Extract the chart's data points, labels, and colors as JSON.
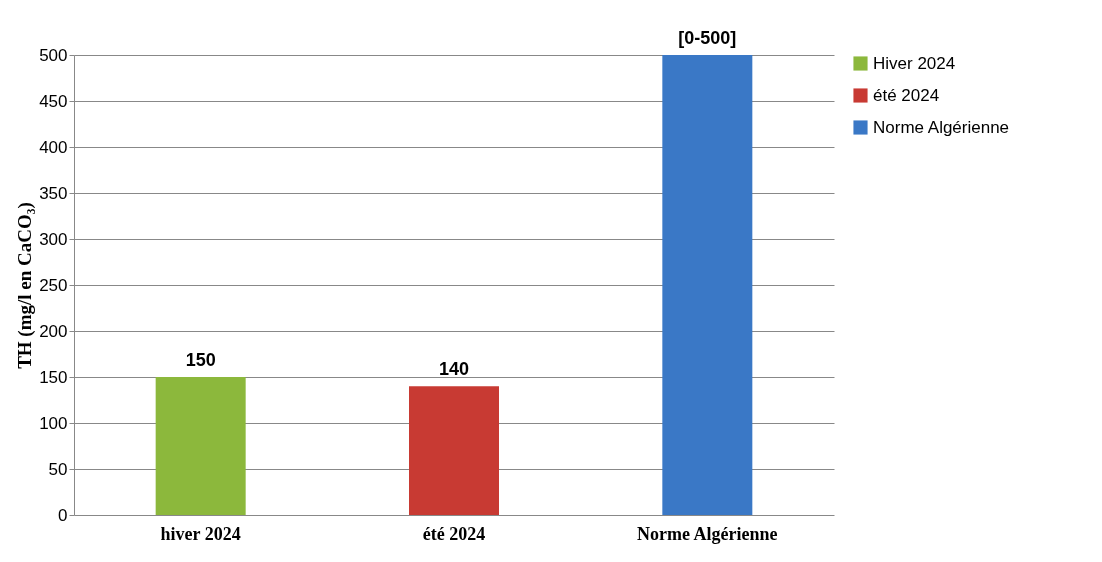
{
  "chart_data": {
    "type": "bar",
    "ylabel": "TH (mg/l en CaCO₃)",
    "categories": [
      "hiver 2024",
      "été 2024",
      "Norme Algérienne"
    ],
    "series": [
      {
        "name": "Hiver 2024",
        "color": "#8cb83c",
        "values": [
          150,
          null,
          null
        ],
        "value_labels": [
          "150",
          null,
          null
        ]
      },
      {
        "name": "été 2024",
        "color": "#c83a33",
        "values": [
          null,
          140,
          null
        ],
        "value_labels": [
          null,
          "140",
          null
        ]
      },
      {
        "name": "Norme Algérienne",
        "color": "#3a78c6",
        "values": [
          null,
          null,
          500
        ],
        "value_labels": [
          null,
          null,
          "[0-500]"
        ]
      }
    ],
    "ylim": [
      0,
      500
    ],
    "yticks": [
      0,
      50,
      100,
      150,
      200,
      250,
      300,
      350,
      400,
      450,
      500
    ],
    "grid": "y",
    "legend": "right"
  }
}
